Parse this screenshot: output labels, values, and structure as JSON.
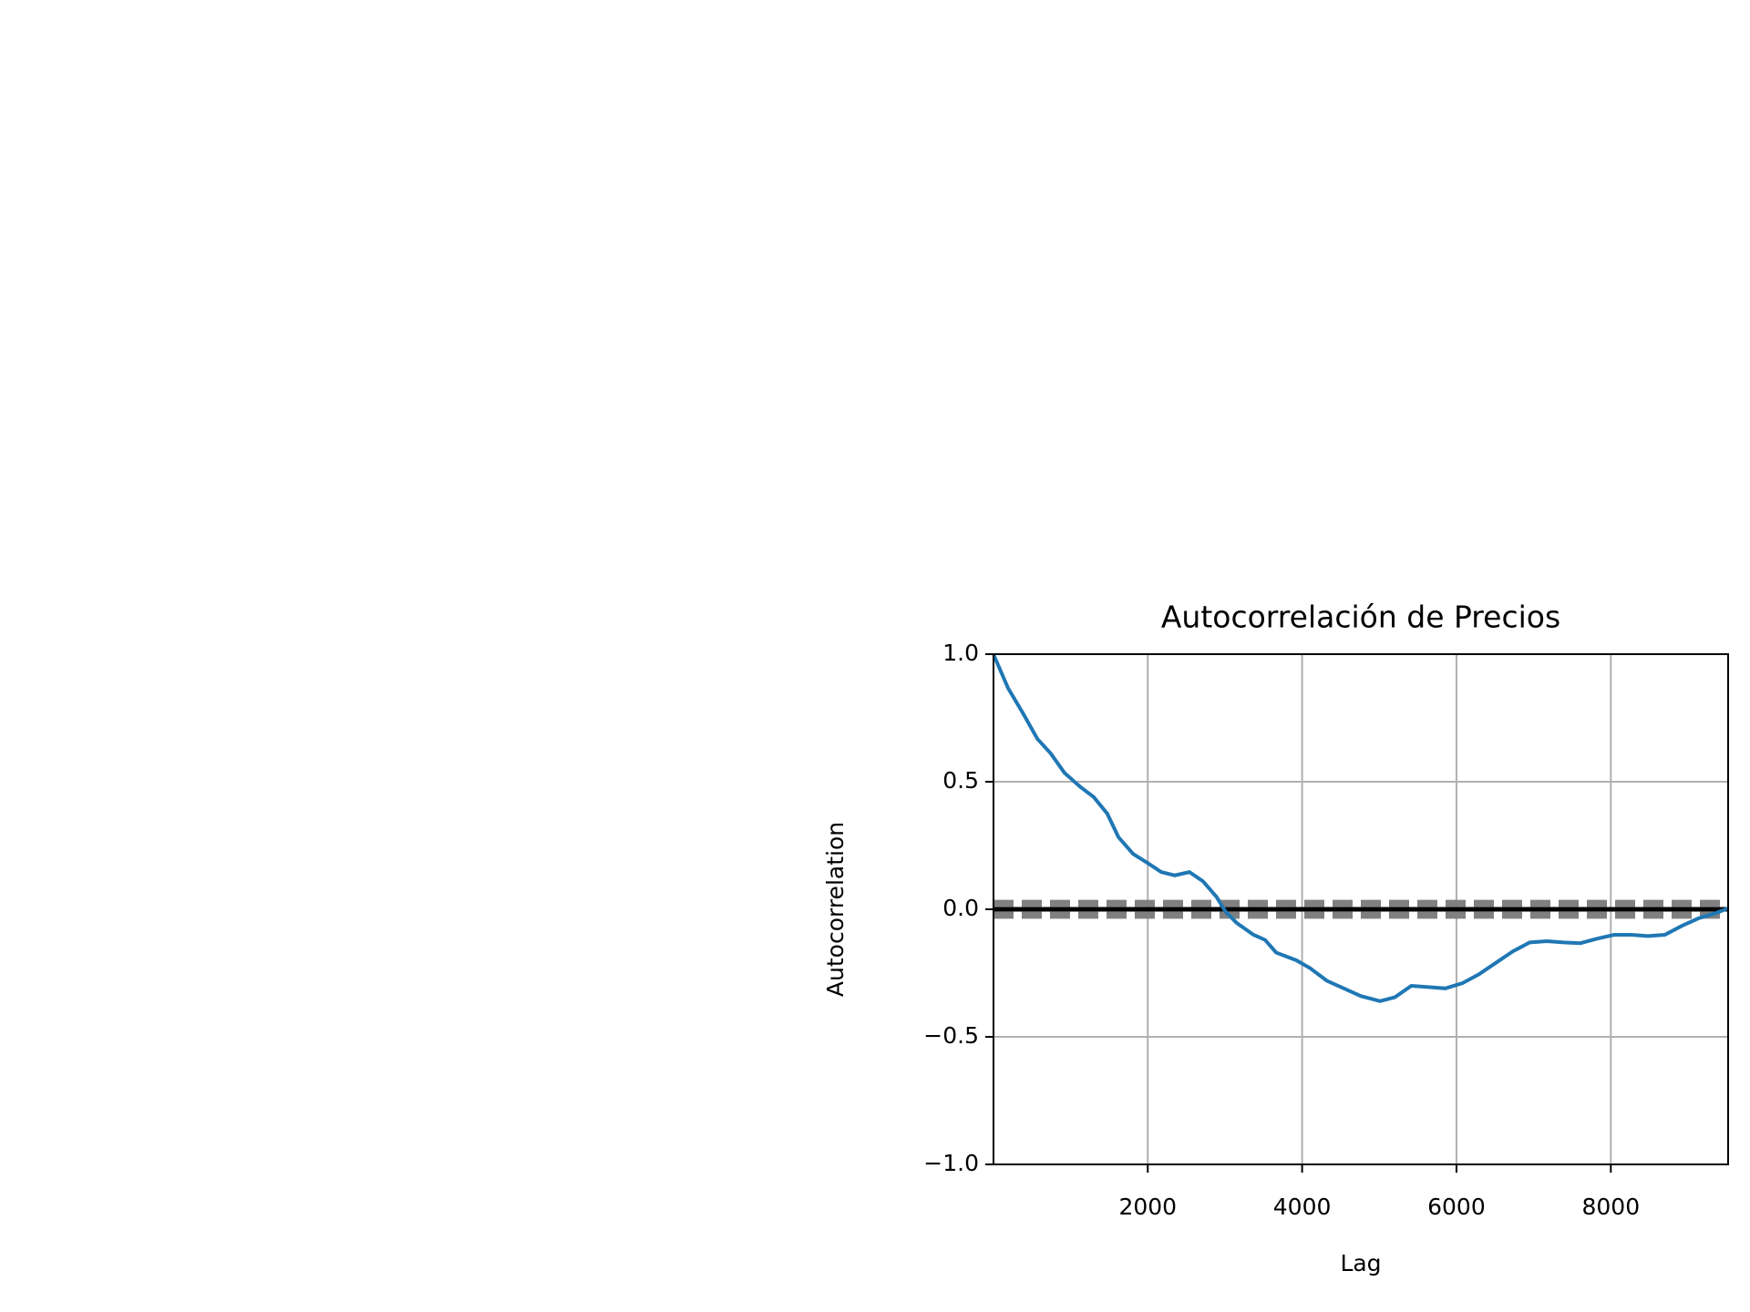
{
  "chart_data": {
    "type": "line",
    "title": "Autocorrelación de Precios",
    "x_label": "Lag",
    "y_label": "Autocorrelation",
    "x": [
      0,
      190,
      380,
      570,
      745,
      920,
      1125,
      1300,
      1475,
      1620,
      1810,
      2000,
      2175,
      2350,
      2540,
      2715,
      2890,
      3010,
      3150,
      3370,
      3520,
      3665,
      3925,
      4100,
      4320,
      4540,
      4760,
      5010,
      5200,
      5415,
      5635,
      5855,
      6075,
      6290,
      6510,
      6730,
      6950,
      7170,
      7390,
      7605,
      7825,
      8045,
      8265,
      8480,
      8700,
      8920,
      9140,
      9360,
      9520
    ],
    "series": [
      {
        "color": "#1f77b4",
        "values": [
          1.0,
          0.867,
          0.77,
          0.668,
          0.61,
          0.535,
          0.48,
          0.44,
          0.375,
          0.283,
          0.217,
          0.181,
          0.146,
          0.133,
          0.146,
          0.11,
          0.049,
          -0.01,
          -0.053,
          -0.1,
          -0.12,
          -0.17,
          -0.2,
          -0.23,
          -0.28,
          -0.31,
          -0.34,
          -0.36,
          -0.345,
          -0.3,
          -0.305,
          -0.31,
          -0.29,
          -0.255,
          -0.21,
          -0.165,
          -0.13,
          -0.125,
          -0.13,
          -0.133,
          -0.115,
          -0.1,
          -0.1,
          -0.105,
          -0.1,
          -0.065,
          -0.035,
          -0.015,
          0.004
        ]
      }
    ],
    "xlim": [
      1,
      9520
    ],
    "xticks": [
      2000,
      4000,
      6000,
      8000
    ],
    "ylim": [
      -1,
      1
    ],
    "yticks": [
      {
        "value": -1,
        "label": "−1.0"
      },
      {
        "value": -0.5,
        "label": "−0.5"
      },
      {
        "value": 0,
        "label": "0.0"
      },
      {
        "value": 0.5,
        "label": "0.5"
      },
      {
        "value": 1,
        "label": "1.0"
      }
    ],
    "hlines": [
      {
        "value": 0.0264,
        "color": "#808080",
        "dashed": true
      },
      {
        "value": 0.0201,
        "color": "#808080",
        "dashed": true
      },
      {
        "value": 0,
        "color": "#000000",
        "dashed": false
      },
      {
        "value": -0.0201,
        "color": "#808080",
        "dashed": true
      },
      {
        "value": -0.0264,
        "color": "#808080",
        "dashed": true
      }
    ],
    "grid": true
  }
}
